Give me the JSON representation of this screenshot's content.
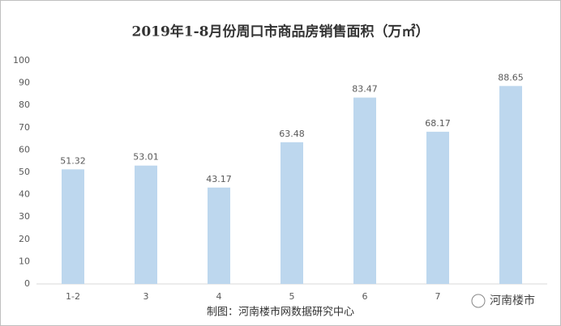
{
  "chart_data": {
    "type": "bar",
    "title": "2019年1-8月份周口市商品房销售面积（万㎡）",
    "categories": [
      "1-2",
      "3",
      "4",
      "5",
      "6",
      "7",
      null
    ],
    "values": [
      51.32,
      53.01,
      43.17,
      63.48,
      83.47,
      68.17,
      88.65
    ],
    "color": "#bdd7ee",
    "ylim": [
      0,
      100
    ],
    "yticks": [
      0,
      10,
      20,
      30,
      40,
      50,
      60,
      70,
      80,
      90,
      100
    ],
    "grid": false,
    "footer": "制图：河南楼市网数据研究中心",
    "watermark": "河南楼市"
  }
}
